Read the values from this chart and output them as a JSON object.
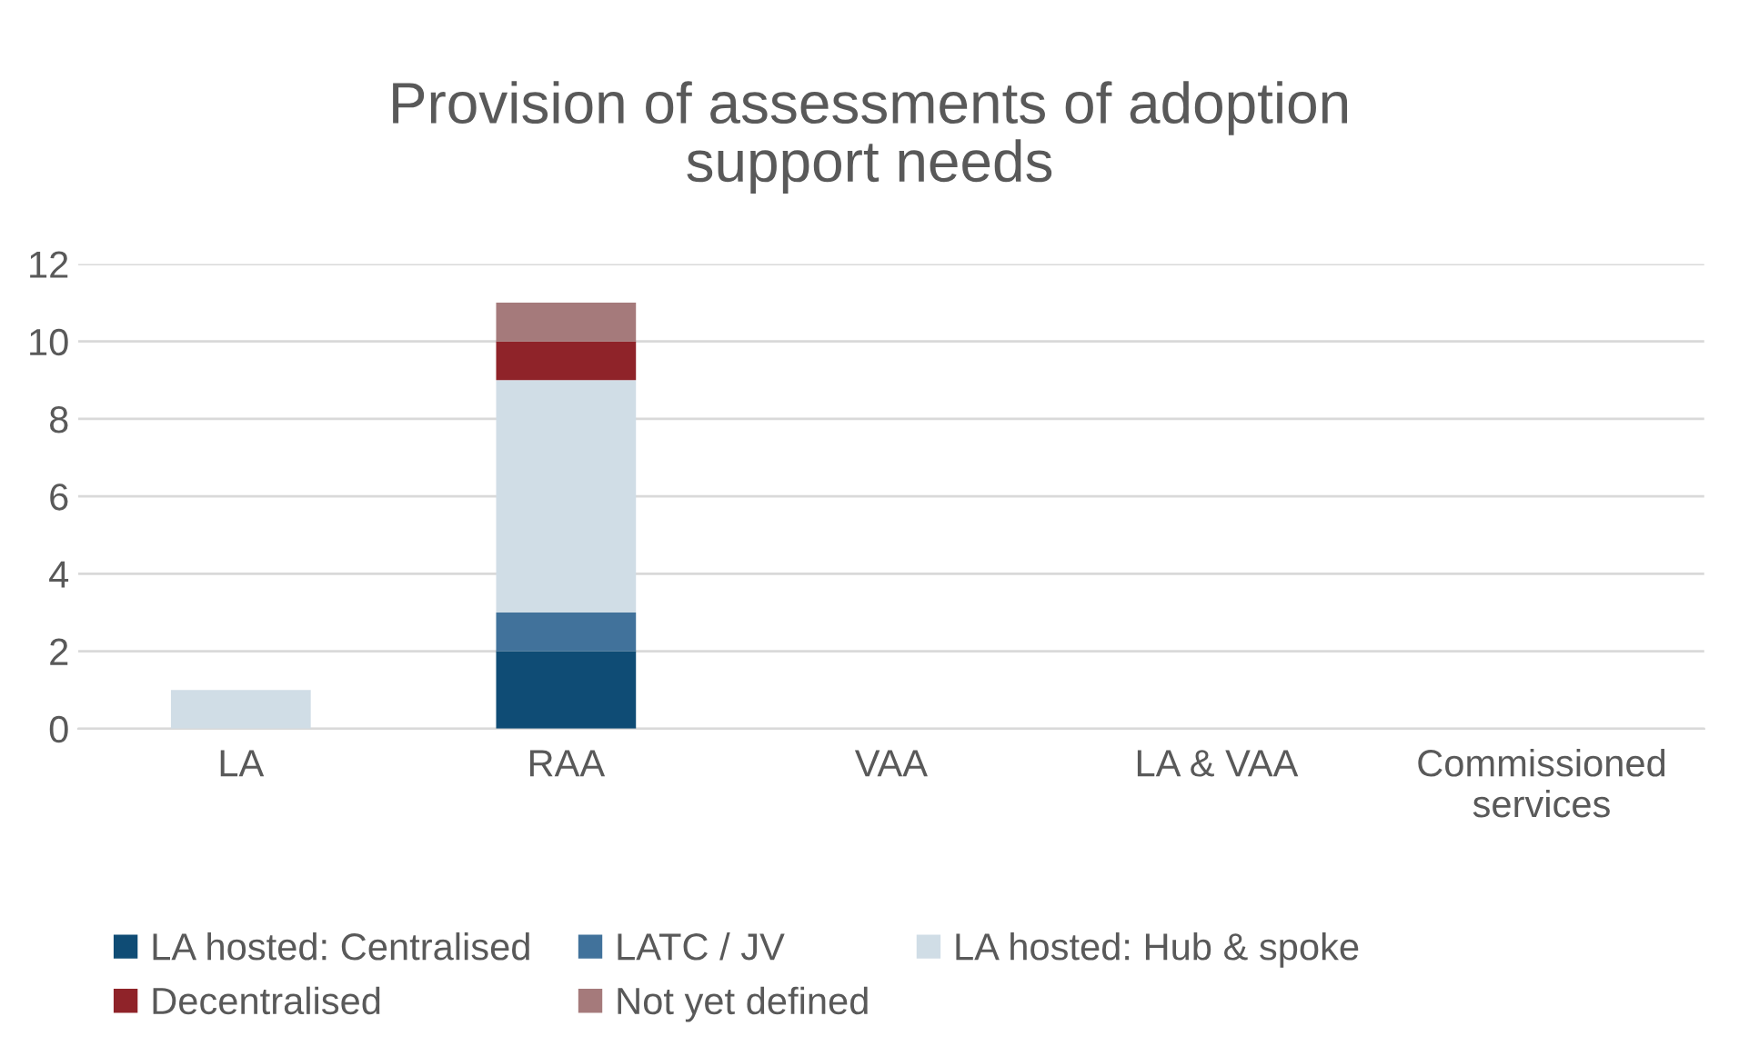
{
  "chart_data": {
    "type": "bar",
    "title": "Provision of assessments of adoption support needs",
    "stacked": true,
    "categories": [
      "LA",
      "RAA",
      "VAA",
      "LA & VAA",
      "Commissioned services"
    ],
    "series": [
      {
        "name": "LA hosted: Centralised",
        "color": "#0f4c75",
        "values": [
          null,
          2,
          null,
          null,
          null
        ]
      },
      {
        "name": "LATC / JV",
        "color": "#41729b",
        "values": [
          null,
          1,
          null,
          null,
          null
        ]
      },
      {
        "name": "LA hosted: Hub & spoke",
        "color": "#d0dde6",
        "values": [
          1,
          6,
          null,
          null,
          null
        ]
      },
      {
        "name": "Decentralised",
        "color": "#8f2329",
        "values": [
          null,
          1,
          null,
          null,
          null
        ]
      },
      {
        "name": "Not yet defined",
        "color": "#a57a7b",
        "values": [
          null,
          1,
          null,
          null,
          null
        ]
      }
    ],
    "ylim": [
      0,
      12
    ],
    "yticks": [
      0,
      2,
      4,
      6,
      8,
      10,
      12
    ],
    "grid": "y",
    "legend": "bottom"
  }
}
